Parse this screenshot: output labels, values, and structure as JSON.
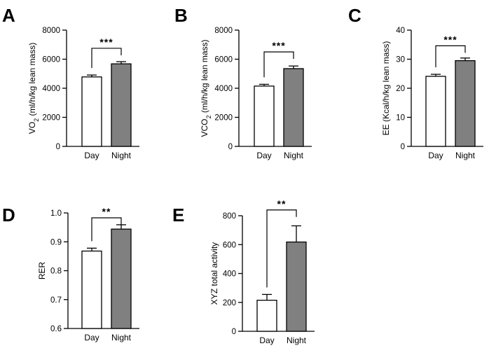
{
  "chart_data": [
    {
      "panel": "A",
      "type": "bar",
      "categories": [
        "Day",
        "Night"
      ],
      "values": [
        4780,
        5680
      ],
      "errors": [
        130,
        150
      ],
      "bar_colors": [
        "#ffffff",
        "#808080"
      ],
      "ylabel_parts": [
        "VO",
        "2",
        " (ml/h/kg lean mass)"
      ],
      "yticks": [
        0,
        2000,
        4000,
        6000,
        8000
      ],
      "tick_labels": [
        "0",
        "2000",
        "4000",
        "6000",
        "8000"
      ],
      "ylim": [
        0,
        8000
      ],
      "significance": "***",
      "bracket_y": 6750,
      "bracket_top": 6750,
      "bracket_drop": [
        6750,
        6750
      ]
    },
    {
      "panel": "B",
      "type": "bar",
      "categories": [
        "Day",
        "Night"
      ],
      "values": [
        4150,
        5350
      ],
      "errors": [
        120,
        180
      ],
      "bar_colors": [
        "#ffffff",
        "#808080"
      ],
      "ylabel_parts": [
        "VCO",
        "2",
        " (ml/h/kg lean mass)"
      ],
      "yticks": [
        0,
        2000,
        4000,
        6000,
        8000
      ],
      "tick_labels": [
        "0",
        "2000",
        "4000",
        "6000",
        "8000"
      ],
      "ylim": [
        0,
        8000
      ],
      "significance": "***",
      "bracket_y": 6500
    },
    {
      "panel": "C",
      "type": "bar",
      "categories": [
        "Day",
        "Night"
      ],
      "values": [
        24.1,
        29.5
      ],
      "errors": [
        0.7,
        0.9
      ],
      "bar_colors": [
        "#ffffff",
        "#808080"
      ],
      "ylabel_parts": [
        "EE (Kcal/h/kg lean mass)"
      ],
      "yticks": [
        0,
        10,
        20,
        30,
        40
      ],
      "tick_labels": [
        "0",
        "10",
        "20",
        "30",
        "40"
      ],
      "ylim": [
        0,
        40
      ],
      "significance": "***",
      "bracket_y": 34.6
    },
    {
      "panel": "D",
      "type": "bar",
      "categories": [
        "Day",
        "Night"
      ],
      "values": [
        0.868,
        0.944
      ],
      "errors": [
        0.01,
        0.015
      ],
      "bar_colors": [
        "#ffffff",
        "#808080"
      ],
      "ylabel_parts": [
        "RER"
      ],
      "yticks": [
        0.6,
        0.7,
        0.8,
        0.9,
        1.0
      ],
      "tick_labels": [
        "0.6",
        "0.7",
        "0.8",
        "0.9",
        "1.0"
      ],
      "ylim": [
        0.6,
        1.0
      ],
      "significance": "**",
      "bracket_y": 0.983
    },
    {
      "panel": "E",
      "type": "bar",
      "categories": [
        "Day",
        "Night"
      ],
      "values": [
        215,
        618
      ],
      "errors": [
        40,
        112
      ],
      "bar_colors": [
        "#ffffff",
        "#808080"
      ],
      "ylabel_parts": [
        "XYZ total activity"
      ],
      "yticks": [
        0,
        200,
        400,
        600,
        800
      ],
      "tick_labels": [
        "0",
        "200",
        "400",
        "600",
        "800"
      ],
      "ylim": [
        0,
        800
      ],
      "significance": "**",
      "bracket_y": 840
    }
  ]
}
